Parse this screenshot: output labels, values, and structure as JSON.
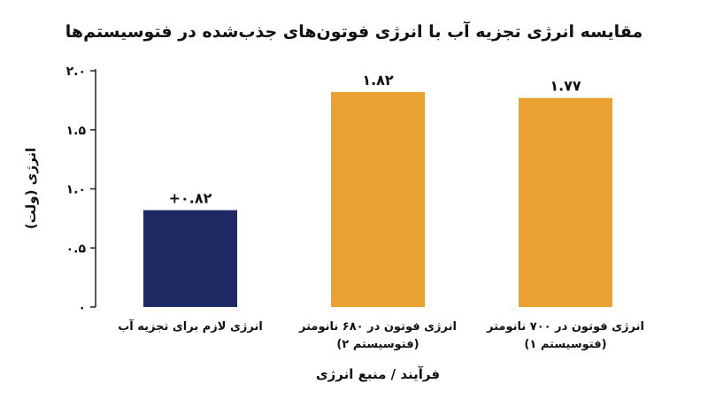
{
  "chart_data": {
    "type": "bar",
    "title": "مقایسه انرژی تجزیه آب با انرژی فوتون‌های جذب‌شده در فتوسیستم‌ها",
    "xlabel": "فرآیند / منبع انرژی",
    "ylabel": "انرژی (ولت)",
    "ylim": [
      0,
      2.0
    ],
    "yticks": [
      0,
      0.5,
      1.0,
      1.5,
      2.0
    ],
    "ytick_labels": [
      "۰",
      "۰.۵",
      "۱.۰",
      "۱.۵",
      "۲.۰"
    ],
    "grid": false,
    "categories": [
      [
        "انرژی لازم برای تجزیه آب"
      ],
      [
        "انرژی فوتون در ۶۸۰ نانومتر",
        "(فتوسیستم ۲)"
      ],
      [
        "انرژی فوتون در ۷۰۰ نانومتر",
        "(فتوسیستم ۱)"
      ]
    ],
    "values": [
      0.82,
      1.82,
      1.77
    ],
    "value_labels": [
      "+۰.۸۲",
      "۱.۸۲",
      "۱.۷۷"
    ],
    "colors": [
      "#1e2a63",
      "#e9a232",
      "#e9a232"
    ]
  }
}
